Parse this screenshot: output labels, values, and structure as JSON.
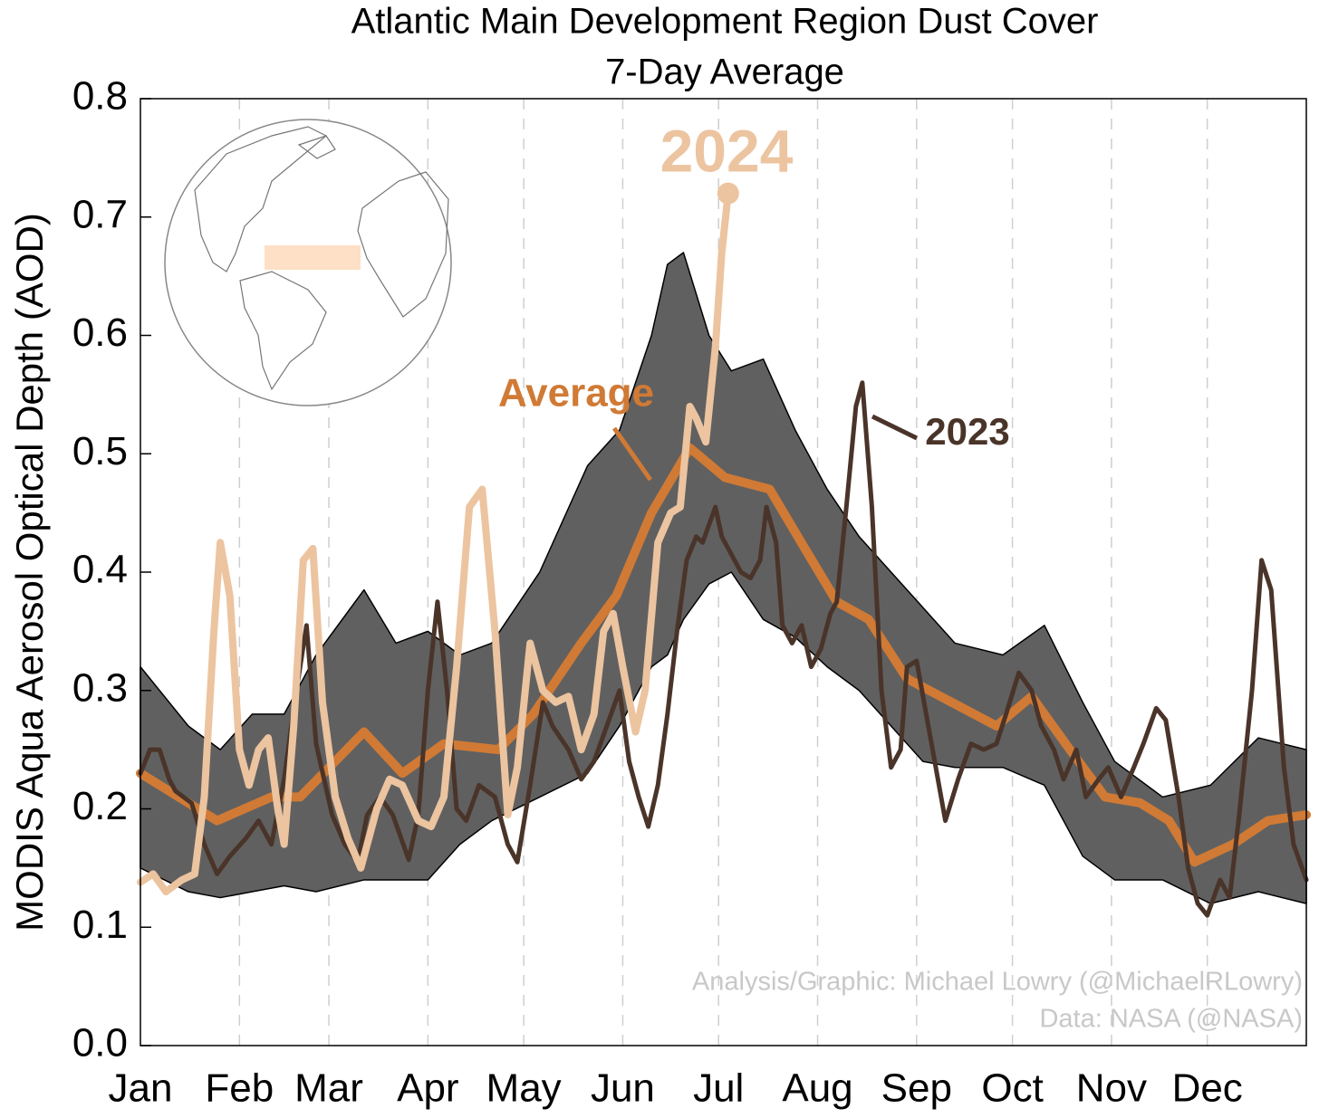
{
  "chart_data": {
    "type": "line",
    "title": "Atlantic Main Development Region Dust Cover",
    "subtitle": "7-Day Average",
    "y_label": "MODIS Aqua Aerosol Optical Depth (AOD)",
    "credits": [
      "Analysis/Graphic: Michael Lowry (@MichaelRLowry)",
      "Data: NASA (@NASA)"
    ],
    "xlim": [
      0,
      365
    ],
    "xticks": [
      {
        "value": 0,
        "label": "Jan"
      },
      {
        "value": 31,
        "label": "Feb"
      },
      {
        "value": 59,
        "label": "Mar"
      },
      {
        "value": 90,
        "label": "Apr"
      },
      {
        "value": 120,
        "label": "May"
      },
      {
        "value": 151,
        "label": "Jun"
      },
      {
        "value": 181,
        "label": "Jul"
      },
      {
        "value": 212,
        "label": "Aug"
      },
      {
        "value": 243,
        "label": "Sep"
      },
      {
        "value": 273,
        "label": "Oct"
      },
      {
        "value": 304,
        "label": "Nov"
      },
      {
        "value": 334,
        "label": "Dec"
      }
    ],
    "ylim": [
      0,
      0.8
    ],
    "yticks": [
      {
        "value": 0,
        "label": "0.0"
      },
      0.1,
      0.2,
      0.3,
      0.4,
      0.5,
      0.6,
      0.7,
      0.8
    ],
    "grid": true,
    "band": {
      "color": "#606060",
      "x": [
        0,
        15,
        25,
        35,
        45,
        55,
        70,
        80,
        90,
        100,
        110,
        125,
        140,
        150,
        160,
        165,
        170,
        178,
        185,
        195,
        205,
        215,
        225,
        235,
        245,
        255,
        270,
        283,
        295,
        305,
        320,
        335,
        350,
        365
      ],
      "upper": [
        0.32,
        0.27,
        0.25,
        0.28,
        0.28,
        0.33,
        0.385,
        0.34,
        0.35,
        0.33,
        0.34,
        0.4,
        0.49,
        0.52,
        0.6,
        0.66,
        0.67,
        0.6,
        0.57,
        0.58,
        0.52,
        0.47,
        0.43,
        0.4,
        0.37,
        0.34,
        0.33,
        0.355,
        0.29,
        0.24,
        0.21,
        0.22,
        0.26,
        0.25
      ],
      "lower": [
        0.15,
        0.13,
        0.125,
        0.13,
        0.135,
        0.13,
        0.14,
        0.14,
        0.14,
        0.17,
        0.19,
        0.21,
        0.23,
        0.27,
        0.32,
        0.33,
        0.36,
        0.39,
        0.4,
        0.36,
        0.345,
        0.32,
        0.3,
        0.27,
        0.24,
        0.235,
        0.235,
        0.22,
        0.16,
        0.14,
        0.14,
        0.12,
        0.13,
        0.12
      ]
    },
    "series": [
      {
        "name": "Average",
        "color": "#d07a35",
        "x": [
          0,
          24,
          41,
          50,
          70,
          82,
          95,
          112,
          123,
          138,
          149,
          160,
          172,
          183,
          197,
          208,
          218,
          228,
          240,
          254,
          268,
          279,
          291,
          302,
          313,
          322,
          330,
          342,
          353,
          365
        ],
        "values": [
          0.23,
          0.19,
          0.21,
          0.21,
          0.265,
          0.23,
          0.255,
          0.25,
          0.28,
          0.34,
          0.38,
          0.45,
          0.505,
          0.48,
          0.47,
          0.42,
          0.375,
          0.36,
          0.31,
          0.29,
          0.27,
          0.295,
          0.25,
          0.21,
          0.205,
          0.19,
          0.155,
          0.17,
          0.19,
          0.195
        ]
      },
      {
        "name": "2023",
        "color": "#4a3429",
        "x": [
          0,
          3,
          6,
          9,
          11,
          16,
          20,
          24,
          28,
          33,
          37,
          41,
          45,
          48,
          52,
          55,
          60,
          64,
          68,
          71,
          75,
          79,
          84,
          87,
          90,
          93,
          96,
          99,
          102,
          106,
          111,
          115,
          118,
          122,
          126,
          129,
          134,
          138,
          142,
          146,
          150,
          153,
          156,
          159,
          162,
          165,
          168,
          171,
          174,
          176,
          180,
          182,
          184,
          188,
          191,
          194,
          196,
          199,
          201,
          204,
          207,
          210,
          213,
          216,
          218,
          221,
          224,
          226,
          229,
          232,
          235,
          238,
          240,
          243,
          246,
          249,
          252,
          256,
          260,
          264,
          268,
          271,
          275,
          279,
          282,
          286,
          289,
          293,
          296,
          300,
          303,
          307,
          311,
          314,
          318,
          321,
          325,
          328,
          331,
          334,
          338,
          341,
          344,
          348,
          351,
          354,
          358,
          361,
          365
        ],
        "values": [
          0.23,
          0.25,
          0.25,
          0.225,
          0.215,
          0.205,
          0.17,
          0.145,
          0.16,
          0.175,
          0.19,
          0.17,
          0.225,
          0.285,
          0.355,
          0.255,
          0.195,
          0.17,
          0.155,
          0.195,
          0.21,
          0.195,
          0.157,
          0.195,
          0.3,
          0.375,
          0.3,
          0.2,
          0.19,
          0.22,
          0.21,
          0.17,
          0.155,
          0.22,
          0.29,
          0.27,
          0.25,
          0.225,
          0.24,
          0.27,
          0.3,
          0.24,
          0.21,
          0.185,
          0.22,
          0.28,
          0.35,
          0.41,
          0.43,
          0.425,
          0.455,
          0.43,
          0.42,
          0.4,
          0.395,
          0.41,
          0.455,
          0.425,
          0.355,
          0.34,
          0.355,
          0.32,
          0.335,
          0.365,
          0.375,
          0.455,
          0.54,
          0.56,
          0.455,
          0.3,
          0.235,
          0.25,
          0.32,
          0.325,
          0.28,
          0.235,
          0.19,
          0.225,
          0.255,
          0.25,
          0.255,
          0.28,
          0.315,
          0.3,
          0.27,
          0.25,
          0.225,
          0.25,
          0.21,
          0.225,
          0.235,
          0.21,
          0.235,
          0.255,
          0.285,
          0.275,
          0.21,
          0.15,
          0.12,
          0.11,
          0.14,
          0.125,
          0.195,
          0.3,
          0.41,
          0.385,
          0.235,
          0.17,
          0.14
        ]
      },
      {
        "name": "2024",
        "color": "#ecc4a0",
        "x": [
          0,
          4,
          8,
          13,
          17,
          20,
          23,
          25,
          28,
          31,
          34,
          37,
          40,
          43,
          45,
          48,
          51,
          54,
          57,
          61,
          65,
          69,
          74,
          78,
          82,
          87,
          91,
          95,
          99,
          103,
          107,
          111,
          115,
          118,
          122,
          126,
          130,
          134,
          138,
          142,
          145,
          148,
          151,
          155,
          158,
          162,
          166,
          169,
          172,
          174,
          177,
          180,
          182,
          184
        ],
        "values": [
          0.138,
          0.145,
          0.13,
          0.14,
          0.145,
          0.21,
          0.35,
          0.425,
          0.38,
          0.25,
          0.22,
          0.25,
          0.26,
          0.2,
          0.17,
          0.27,
          0.41,
          0.42,
          0.29,
          0.21,
          0.175,
          0.15,
          0.2,
          0.225,
          0.22,
          0.19,
          0.185,
          0.21,
          0.32,
          0.455,
          0.47,
          0.35,
          0.195,
          0.235,
          0.34,
          0.3,
          0.29,
          0.295,
          0.25,
          0.28,
          0.35,
          0.365,
          0.32,
          0.265,
          0.3,
          0.425,
          0.45,
          0.455,
          0.54,
          0.53,
          0.51,
          0.59,
          0.67,
          0.72
        ]
      }
    ]
  }
}
